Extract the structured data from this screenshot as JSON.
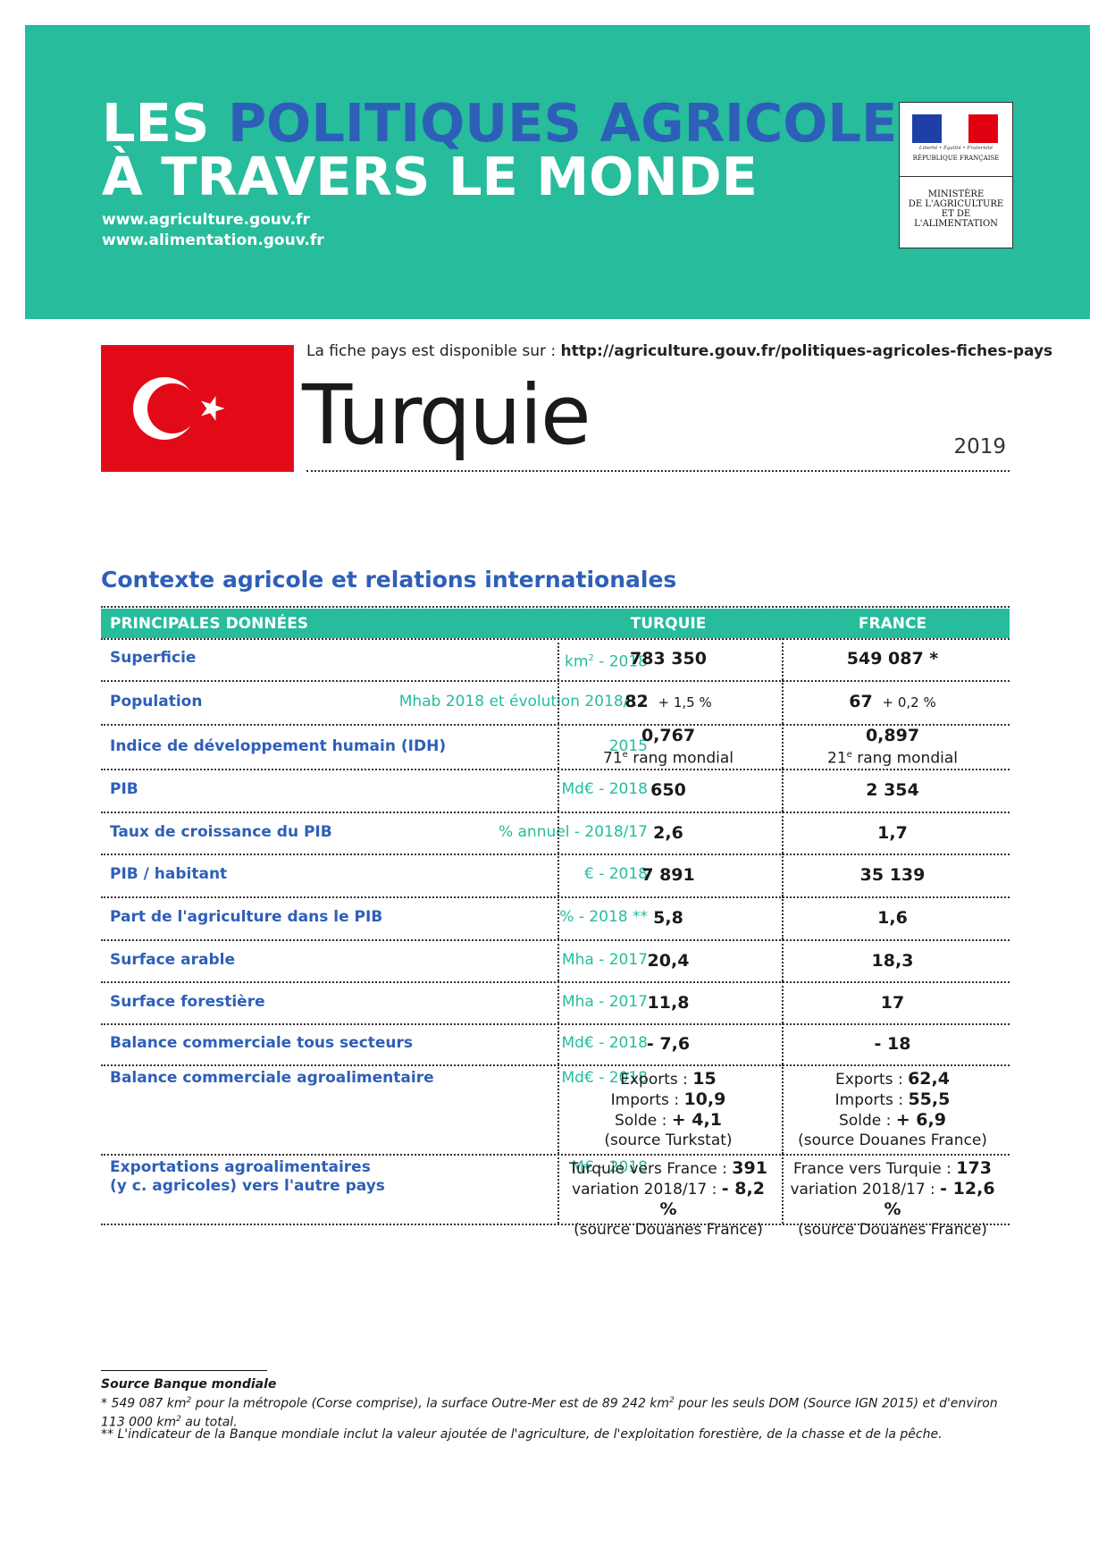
{
  "header": {
    "title_prefix": "LES ",
    "title_highlight": "POLITIQUES AGRICOLES",
    "title_line2": "À TRAVERS LE MONDE",
    "url1": "www.agriculture.gouv.fr",
    "url2": "www.alimentation.gouv.fr",
    "colors": {
      "banner": "#26bc9c",
      "blue": "#2e5fb8"
    }
  },
  "logo": {
    "motto": "Liberté • Égalité • Fraternité",
    "republique": "RÉPUBLIQUE FRANÇAISE",
    "ministere_line1": "MINISTÈRE",
    "ministere_line2": "DE L'AGRICULTURE",
    "ministere_line3": "ET DE",
    "ministere_line4": "L'ALIMENTATION"
  },
  "country": {
    "fiche_text": "La fiche pays est disponible sur : ",
    "fiche_url": "http://agriculture.gouv.fr/politiques-agricoles-fiches-pays",
    "name": "Turquie",
    "year": "2019",
    "flag_icon": "turkey-flag-icon"
  },
  "section_title": "Contexte agricole et relations internationales",
  "table": {
    "headers": {
      "label": "PRINCIPALES DONNÉES",
      "turquie": "TURQUIE",
      "france": "FRANCE"
    },
    "rows": [
      {
        "label": "Superficie",
        "unit_base": "km",
        "unit_sup": "2",
        "unit_rest": " - 2018",
        "turquie": "783 350",
        "france": "549 087 *"
      },
      {
        "label": "Population",
        "unit": "Mhab 2018 et évolution 2018/17",
        "turquie": "82",
        "turquie_evo": "+ 1,5 %",
        "france": "67",
        "france_evo": "+ 0,2 %"
      },
      {
        "label": "Indice de développement humain (IDH)",
        "unit": "2015",
        "turquie": "0,767",
        "turquie_rank_num": "71",
        "turquie_rank_sup": "e",
        "turquie_rank_text": " rang mondial",
        "france": "0,897",
        "france_rank_num": "21",
        "france_rank_sup": "e",
        "france_rank_text": " rang mondial"
      },
      {
        "label": "PIB",
        "unit": "Md€ - 2018",
        "turquie": "650",
        "france": "2 354"
      },
      {
        "label": "Taux de croissance du PIB",
        "unit": "% annuel - 2018/17",
        "turquie": "2,6",
        "france": "1,7"
      },
      {
        "label": "PIB / habitant",
        "unit": "€ - 2018",
        "turquie": "7 891",
        "france": "35 139"
      },
      {
        "label": "Part de l'agriculture dans le PIB",
        "unit": "% - 2018 **",
        "turquie": "5,8",
        "france": "1,6"
      },
      {
        "label": "Surface arable",
        "unit": "Mha  - 2017",
        "turquie": "20,4",
        "france": "18,3"
      },
      {
        "label": "Surface forestière",
        "unit": "Mha - 2017",
        "turquie": "11,8",
        "france": "17"
      },
      {
        "label": "Balance commerciale tous secteurs",
        "unit": "Md€ - 2018",
        "turquie": "- 7,6",
        "france": "- 18"
      },
      {
        "label": "Balance commerciale  agroalimentaire",
        "unit": "Md€ - 2018",
        "turquie_exports_label": "Exports : ",
        "turquie_exports": "15",
        "turquie_imports_label": "Imports : ",
        "turquie_imports": "10,9",
        "turquie_solde_label": "Solde : ",
        "turquie_solde": "+ 4,1",
        "turquie_source": "(source Turkstat)",
        "france_exports_label": "Exports : ",
        "france_exports": "62,4",
        "france_imports_label": "Imports : ",
        "france_imports": "55,5",
        "france_solde_label": "Solde : ",
        "france_solde": "+ 6,9",
        "france_source": "(source Douanes France)"
      },
      {
        "label_line1": "Exportations agroalimentaires",
        "label_line2": "(y c. agricoles) vers l'autre pays",
        "unit": "M€ - 2018",
        "turquie_flow_label": "Turquie vers France : ",
        "turquie_flow": "391",
        "turquie_var_label": "variation 2018/17 : ",
        "turquie_var": "- 8,2 %",
        "turquie_source": "(source Douanes France)",
        "france_flow_label": "France vers Turquie : ",
        "france_flow": "173",
        "france_var_label": "variation 2018/17 : ",
        "france_var": "- 12,6 %",
        "france_source": "(source Douanes France)"
      }
    ]
  },
  "footnotes": {
    "source": "Source Banque mondiale",
    "note1_a": "* 549 087 km",
    "note1_sup1": "2",
    "note1_b": " pour la métropole (Corse comprise), la surface Outre-Mer est de 89 242 km",
    "note1_sup2": "2",
    "note1_c": " pour les seuls DOM (Source IGN 2015) et d'environ",
    "note1_d": "113 000 km",
    "note1_sup3": "2",
    "note1_e": " au total.",
    "note2": "** L'indicateur de la Banque mondiale inclut la valeur ajoutée de l'agriculture, de l'exploitation forestière, de la chasse et de la pêche."
  }
}
